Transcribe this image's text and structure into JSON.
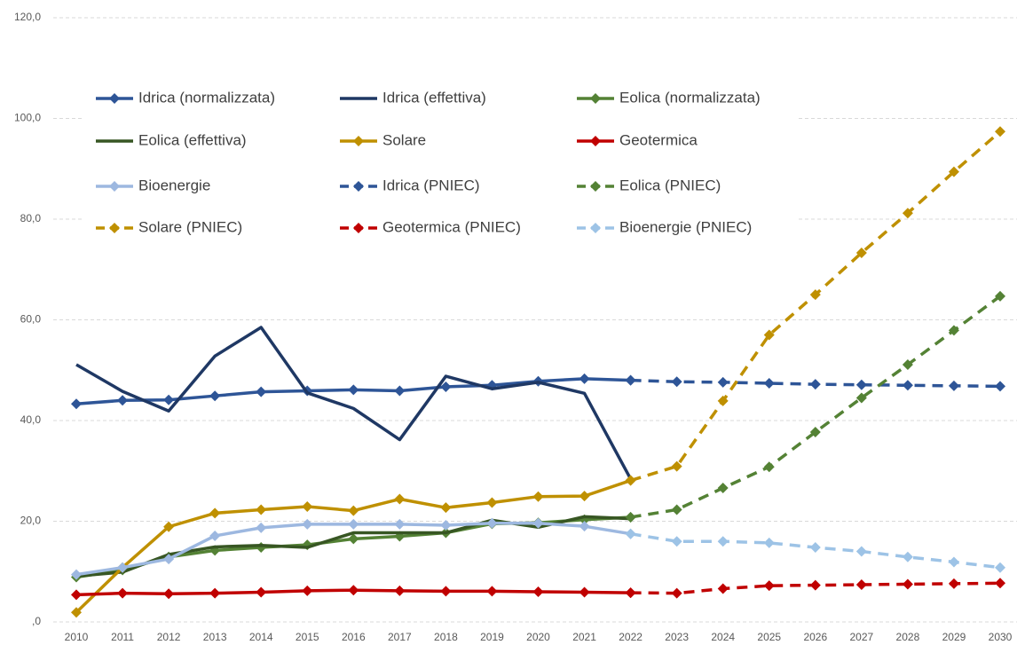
{
  "chart_data": {
    "type": "line",
    "categories": [
      "2010",
      "2011",
      "2012",
      "2013",
      "2014",
      "2015",
      "2016",
      "2017",
      "2018",
      "2019",
      "2020",
      "2021",
      "2022",
      "2023",
      "2024",
      "2025",
      "2026",
      "2027",
      "2028",
      "2029",
      "2030"
    ],
    "ylim": [
      0,
      120
    ],
    "yticks": [
      {
        "value": 0,
        "label": ",0"
      },
      {
        "value": 20,
        "label": "20,0"
      },
      {
        "value": 40,
        "label": "40,0"
      },
      {
        "value": 60,
        "label": "60,0"
      },
      {
        "value": 80,
        "label": "80,0"
      },
      {
        "value": 100,
        "label": "100,0"
      },
      {
        "value": 120,
        "label": "120,0"
      }
    ],
    "grid": true,
    "legend": "top",
    "series": [
      {
        "name": "Idrica (normalizzata)",
        "color": "#2e5597",
        "marker": true,
        "dash": false,
        "values": [
          43.3,
          44.0,
          44.1,
          44.9,
          45.7,
          45.9,
          46.1,
          45.9,
          46.7,
          47.0,
          47.8,
          48.3,
          48.0,
          null,
          null,
          null,
          null,
          null,
          null,
          null,
          null
        ]
      },
      {
        "name": "Idrica (effettiva)",
        "color": "#1f3864",
        "marker": false,
        "dash": false,
        "values": [
          51.1,
          45.8,
          41.9,
          52.8,
          58.5,
          45.5,
          42.4,
          36.2,
          48.8,
          46.3,
          47.6,
          45.4,
          28.4,
          null,
          null,
          null,
          null,
          null,
          null,
          null,
          null
        ]
      },
      {
        "name": "Eolica (normalizzata)",
        "color": "#548235",
        "marker": true,
        "dash": false,
        "values": [
          8.9,
          10.3,
          12.9,
          14.2,
          14.8,
          15.3,
          16.5,
          17.0,
          17.7,
          19.5,
          19.7,
          20.3,
          20.8,
          null,
          null,
          null,
          null,
          null,
          null,
          null,
          null
        ]
      },
      {
        "name": "Eolica (effettiva)",
        "color": "#375623",
        "marker": false,
        "dash": false,
        "values": [
          9.1,
          9.9,
          13.4,
          14.9,
          15.2,
          14.8,
          17.7,
          17.7,
          17.7,
          20.2,
          18.8,
          20.9,
          20.5,
          null,
          null,
          null,
          null,
          null,
          null,
          null,
          null
        ]
      },
      {
        "name": "Solare",
        "color": "#bf9000",
        "marker": true,
        "dash": false,
        "values": [
          1.9,
          10.8,
          18.9,
          21.6,
          22.3,
          22.9,
          22.1,
          24.4,
          22.7,
          23.7,
          24.9,
          25.0,
          28.1,
          null,
          null,
          null,
          null,
          null,
          null,
          null,
          null
        ]
      },
      {
        "name": "Geotermica",
        "color": "#c00000",
        "marker": true,
        "dash": false,
        "values": [
          5.4,
          5.7,
          5.6,
          5.7,
          5.9,
          6.2,
          6.3,
          6.2,
          6.1,
          6.1,
          6.0,
          5.9,
          5.8,
          null,
          null,
          null,
          null,
          null,
          null,
          null,
          null
        ]
      },
      {
        "name": "Bioenergie",
        "color": "#9db8e0",
        "marker": true,
        "dash": false,
        "values": [
          9.4,
          10.8,
          12.5,
          17.1,
          18.7,
          19.4,
          19.4,
          19.4,
          19.2,
          19.6,
          19.6,
          19.0,
          17.5,
          null,
          null,
          null,
          null,
          null,
          null,
          null,
          null
        ]
      },
      {
        "name": "Idrica (PNIEC)",
        "color": "#2e5597",
        "marker": true,
        "dash": true,
        "values": [
          null,
          null,
          null,
          null,
          null,
          null,
          null,
          null,
          null,
          null,
          null,
          null,
          48.0,
          47.7,
          47.6,
          47.4,
          47.2,
          47.1,
          47.0,
          46.9,
          46.8
        ]
      },
      {
        "name": "Eolica (PNIEC)",
        "color": "#548235",
        "marker": true,
        "dash": true,
        "values": [
          null,
          null,
          null,
          null,
          null,
          null,
          null,
          null,
          null,
          null,
          null,
          null,
          20.8,
          22.3,
          26.6,
          30.8,
          37.7,
          44.5,
          51.1,
          57.9,
          64.7
        ]
      },
      {
        "name": "Solare (PNIEC)",
        "color": "#bf9000",
        "marker": true,
        "dash": true,
        "values": [
          null,
          null,
          null,
          null,
          null,
          null,
          null,
          null,
          null,
          null,
          null,
          null,
          28.1,
          30.9,
          43.9,
          57.0,
          65.0,
          73.3,
          81.2,
          89.4,
          97.4
        ]
      },
      {
        "name": "Geotermica (PNIEC)",
        "color": "#c00000",
        "marker": true,
        "dash": true,
        "values": [
          null,
          null,
          null,
          null,
          null,
          null,
          null,
          null,
          null,
          null,
          null,
          null,
          5.8,
          5.7,
          6.6,
          7.2,
          7.3,
          7.4,
          7.5,
          7.6,
          7.7
        ]
      },
      {
        "name": "Bioenergie (PNIEC)",
        "color": "#9dc3e6",
        "marker": true,
        "dash": true,
        "values": [
          null,
          null,
          null,
          null,
          null,
          null,
          null,
          null,
          null,
          null,
          null,
          null,
          17.5,
          16.0,
          16.0,
          15.7,
          14.8,
          14.0,
          12.9,
          11.9,
          10.8
        ]
      }
    ]
  }
}
